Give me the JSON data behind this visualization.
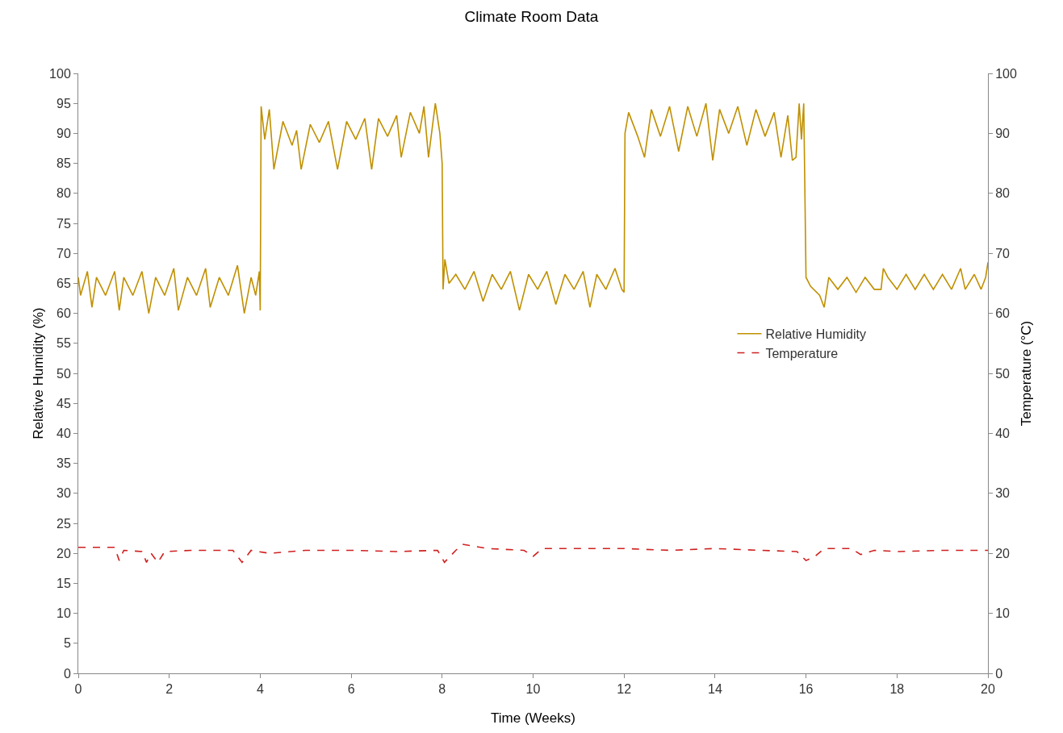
{
  "chart_data": {
    "type": "line",
    "title": "Climate Room Data",
    "xlabel": "Time (Weeks)",
    "ylabel": "Relative Humidity (%)",
    "y2label": "Temperature (°C)",
    "xlim": [
      0,
      20
    ],
    "xticks": [
      0,
      2,
      4,
      6,
      8,
      10,
      12,
      14,
      16,
      18,
      20
    ],
    "ylim": [
      0,
      100
    ],
    "yticks": [
      0,
      5,
      10,
      15,
      20,
      25,
      30,
      35,
      40,
      45,
      50,
      55,
      60,
      65,
      70,
      75,
      80,
      85,
      90,
      95,
      100
    ],
    "y2lim": [
      0,
      100
    ],
    "y2ticks": [
      0,
      10,
      20,
      30,
      40,
      50,
      60,
      70,
      80,
      90,
      100
    ],
    "grid": false,
    "legend": "right",
    "marker": "none",
    "series": [
      {
        "name": "Relative Humidity",
        "color": "#c09000",
        "line_style": "solid",
        "x": [
          0,
          0.05,
          0.2,
          0.3,
          0.4,
          0.6,
          0.8,
          0.9,
          1.0,
          1.2,
          1.4,
          1.55,
          1.7,
          1.9,
          2.1,
          2.2,
          2.4,
          2.6,
          2.8,
          2.9,
          3.1,
          3.3,
          3.5,
          3.65,
          3.8,
          3.9,
          3.98,
          4.0,
          4.02,
          4.1,
          4.2,
          4.3,
          4.5,
          4.7,
          4.8,
          4.9,
          5.1,
          5.3,
          5.5,
          5.7,
          5.9,
          6.1,
          6.3,
          6.45,
          6.6,
          6.8,
          7.0,
          7.1,
          7.3,
          7.5,
          7.6,
          7.7,
          7.85,
          7.95,
          8.0,
          8.02,
          8.06,
          8.15,
          8.3,
          8.5,
          8.7,
          8.9,
          9.1,
          9.3,
          9.5,
          9.7,
          9.9,
          10.1,
          10.3,
          10.5,
          10.7,
          10.9,
          11.1,
          11.25,
          11.4,
          11.6,
          11.8,
          11.95,
          12.0,
          12.02,
          12.1,
          12.3,
          12.45,
          12.6,
          12.8,
          13.0,
          13.2,
          13.4,
          13.6,
          13.8,
          13.95,
          14.1,
          14.3,
          14.5,
          14.7,
          14.9,
          15.1,
          15.3,
          15.45,
          15.6,
          15.7,
          15.78,
          15.85,
          15.9,
          15.95,
          16.0,
          16.1,
          16.3,
          16.4,
          16.5,
          16.7,
          16.9,
          17.1,
          17.3,
          17.5,
          17.65,
          17.7,
          17.8,
          18.0,
          18.2,
          18.4,
          18.6,
          18.8,
          19.0,
          19.2,
          19.4,
          19.5,
          19.7,
          19.85,
          19.95,
          20.0
        ],
        "values": [
          66,
          63,
          67,
          61,
          66,
          63,
          67,
          60.5,
          66,
          63,
          67,
          60,
          66,
          63,
          67.5,
          60.5,
          66,
          63,
          67.5,
          61,
          66,
          63,
          68,
          60,
          66,
          63,
          67,
          60.5,
          94.5,
          89,
          94,
          84,
          92,
          88,
          90.5,
          84,
          91.5,
          88.5,
          92,
          84,
          92,
          89,
          92.5,
          84,
          92.5,
          89.5,
          93,
          86,
          93.5,
          90,
          94.5,
          86,
          95,
          90,
          85,
          64,
          69,
          65,
          66.5,
          64,
          67,
          62,
          66.5,
          64,
          67,
          60.5,
          66.5,
          64,
          67,
          61.5,
          66.5,
          64,
          67,
          61,
          66.5,
          64,
          67.5,
          64,
          63.5,
          90,
          93.5,
          89.5,
          86,
          94,
          89.5,
          94.5,
          87,
          94.5,
          89.5,
          95,
          85.5,
          94,
          90,
          94.5,
          88,
          94,
          89.5,
          93.5,
          86,
          93,
          85.5,
          86,
          95,
          89,
          95,
          66,
          64.5,
          63,
          61,
          66,
          64,
          66,
          63.5,
          66,
          64,
          64,
          67.5,
          66,
          64,
          66.5,
          64,
          66.5,
          64,
          66.5,
          64,
          67.5,
          64,
          66.5,
          64,
          66,
          68.5
        ]
      },
      {
        "name": "Temperature",
        "color": "#d02020",
        "line_style": "dashed",
        "axis": "y2",
        "x": [
          0,
          0.8,
          0.9,
          1.0,
          1.4,
          1.5,
          1.6,
          1.75,
          1.9,
          2.5,
          3.4,
          3.6,
          3.8,
          4.2,
          5,
          6,
          7,
          7.9,
          8.05,
          8.3,
          8.45,
          9,
          9.8,
          10,
          10.2,
          12,
          13,
          14,
          15,
          15.8,
          16.0,
          16.2,
          16.4,
          17,
          17.2,
          17.5,
          18,
          19,
          20
        ],
        "values": [
          21,
          21,
          18.8,
          20.5,
          20.3,
          18.5,
          20,
          18.5,
          20.3,
          20.5,
          20.5,
          18.5,
          20.5,
          20,
          20.5,
          20.5,
          20.3,
          20.5,
          18.5,
          20.5,
          21.5,
          20.8,
          20.5,
          19.5,
          20.8,
          20.8,
          20.5,
          20.8,
          20.5,
          20.3,
          18.8,
          19.5,
          20.8,
          20.8,
          19.8,
          20.5,
          20.3,
          20.5,
          20.5
        ]
      }
    ]
  }
}
